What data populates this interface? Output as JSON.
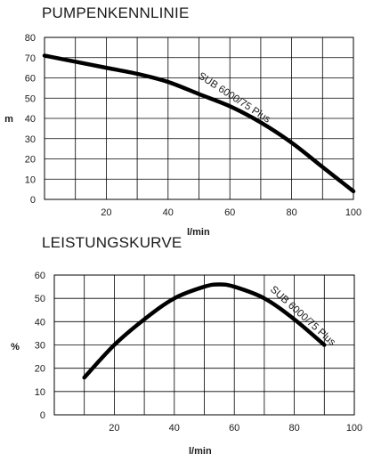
{
  "colors": {
    "grid": "#000000",
    "curve": "#000000",
    "text": "#1a1a1a",
    "background": "#ffffff"
  },
  "chart_data": [
    {
      "type": "line",
      "title": "PUMPENKENNLINIE",
      "xlabel": "l/min",
      "ylabel": "m",
      "xlim": [
        0,
        100
      ],
      "ylim": [
        0,
        80
      ],
      "xticks": [
        20,
        40,
        60,
        80,
        100
      ],
      "yticks": [
        0,
        10,
        20,
        30,
        40,
        50,
        60,
        70,
        80
      ],
      "grid": true,
      "curve_label": "SUB 6000/75 Plus",
      "series": [
        {
          "name": "SUB 6000/75 Plus",
          "x": [
            0,
            10,
            20,
            30,
            40,
            50,
            60,
            70,
            80,
            90,
            100
          ],
          "y": [
            71,
            68,
            65,
            62,
            58,
            52,
            46,
            38,
            28,
            16,
            4
          ]
        }
      ]
    },
    {
      "type": "line",
      "title": "LEISTUNGSKURVE",
      "xlabel": "l/min",
      "ylabel": "%",
      "xlim": [
        0,
        100
      ],
      "ylim": [
        0,
        60
      ],
      "xticks": [
        20,
        40,
        60,
        80,
        100
      ],
      "yticks": [
        0,
        10,
        20,
        30,
        40,
        50,
        60
      ],
      "grid": true,
      "curve_label": "SUB 6000/75 Plus",
      "series": [
        {
          "name": "SUB 6000/75 Plus",
          "x": [
            10,
            20,
            30,
            40,
            50,
            55,
            60,
            70,
            80,
            90
          ],
          "y": [
            16,
            30,
            41,
            50,
            55,
            56,
            55,
            50,
            41,
            30
          ]
        }
      ]
    }
  ]
}
